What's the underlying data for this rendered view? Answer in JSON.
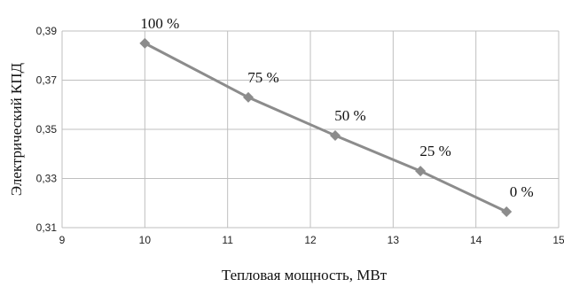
{
  "chart_data": {
    "type": "line",
    "xlabel": "Тепловая мощность, МВт",
    "ylabel": "Электрический КПД",
    "xlim": [
      9,
      15
    ],
    "ylim": [
      0.31,
      0.39
    ],
    "x_ticks": [
      "9",
      "10",
      "11",
      "12",
      "13",
      "14",
      "15"
    ],
    "y_ticks": [
      "0,31",
      "0,33",
      "0,35",
      "0,37",
      "0,39"
    ],
    "grid": "both",
    "series": [
      {
        "x": [
          10.0,
          11.25,
          12.3,
          13.33,
          14.37
        ],
        "y": [
          0.385,
          0.363,
          0.3475,
          0.333,
          0.3165
        ],
        "labels": [
          "100 %",
          "75 %",
          "50 %",
          "25 %",
          "0 %"
        ],
        "color": "#8c8c8c",
        "marker": "diamond"
      }
    ]
  }
}
